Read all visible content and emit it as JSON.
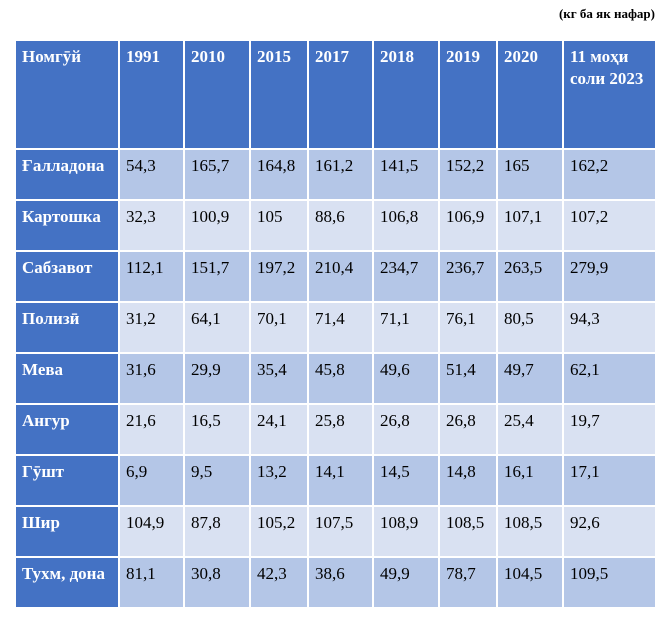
{
  "unit_note": "(кг ба як нафар)",
  "table": {
    "headers": [
      "Номгӯй",
      "1991",
      "2010",
      "2015",
      "2017",
      "2018",
      "2019",
      "2020",
      "11 моҳи соли 2023"
    ],
    "rows": [
      {
        "label": "Ғалладона",
        "values": [
          "54,3",
          "165,7",
          "164,8",
          "161,2",
          "141,5",
          "152,2",
          "165",
          "162,2"
        ]
      },
      {
        "label": "Картошка",
        "values": [
          "32,3",
          "100,9",
          "105",
          "88,6",
          "106,8",
          "106,9",
          "107,1",
          "107,2"
        ]
      },
      {
        "label": "Сабзавот",
        "values": [
          "112,1",
          "151,7",
          "197,2",
          "210,4",
          "234,7",
          "236,7",
          "263,5",
          "279,9"
        ]
      },
      {
        "label": "Полизӣ",
        "values": [
          "31,2",
          "64,1",
          "70,1",
          "71,4",
          "71,1",
          "76,1",
          "80,5",
          "94,3"
        ]
      },
      {
        "label": "Мева",
        "values": [
          "31,6",
          "29,9",
          "35,4",
          "45,8",
          "49,6",
          "51,4",
          "49,7",
          "62,1"
        ]
      },
      {
        "label": "Ангур",
        "values": [
          "21,6",
          "16,5",
          "24,1",
          "25,8",
          "26,8",
          "26,8",
          "25,4",
          "19,7"
        ]
      },
      {
        "label": "Гӯшт",
        "values": [
          "6,9",
          "9,5",
          "13,2",
          "14,1",
          "14,5",
          "14,8",
          "16,1",
          "17,1"
        ]
      },
      {
        "label": "Шир",
        "values": [
          "104,9",
          "87,8",
          "105,2",
          "107,5",
          "108,9",
          "108,5",
          "108,5",
          "92,6"
        ]
      },
      {
        "label": "Тухм, дона",
        "values": [
          "81,1",
          "30,8",
          "42,3",
          "38,6",
          "49,9",
          "78,7",
          "104,5",
          "109,5"
        ]
      }
    ]
  },
  "colors": {
    "header_bg": "#4472c4",
    "row_odd": "#b4c6e7",
    "row_even": "#d9e1f2"
  }
}
